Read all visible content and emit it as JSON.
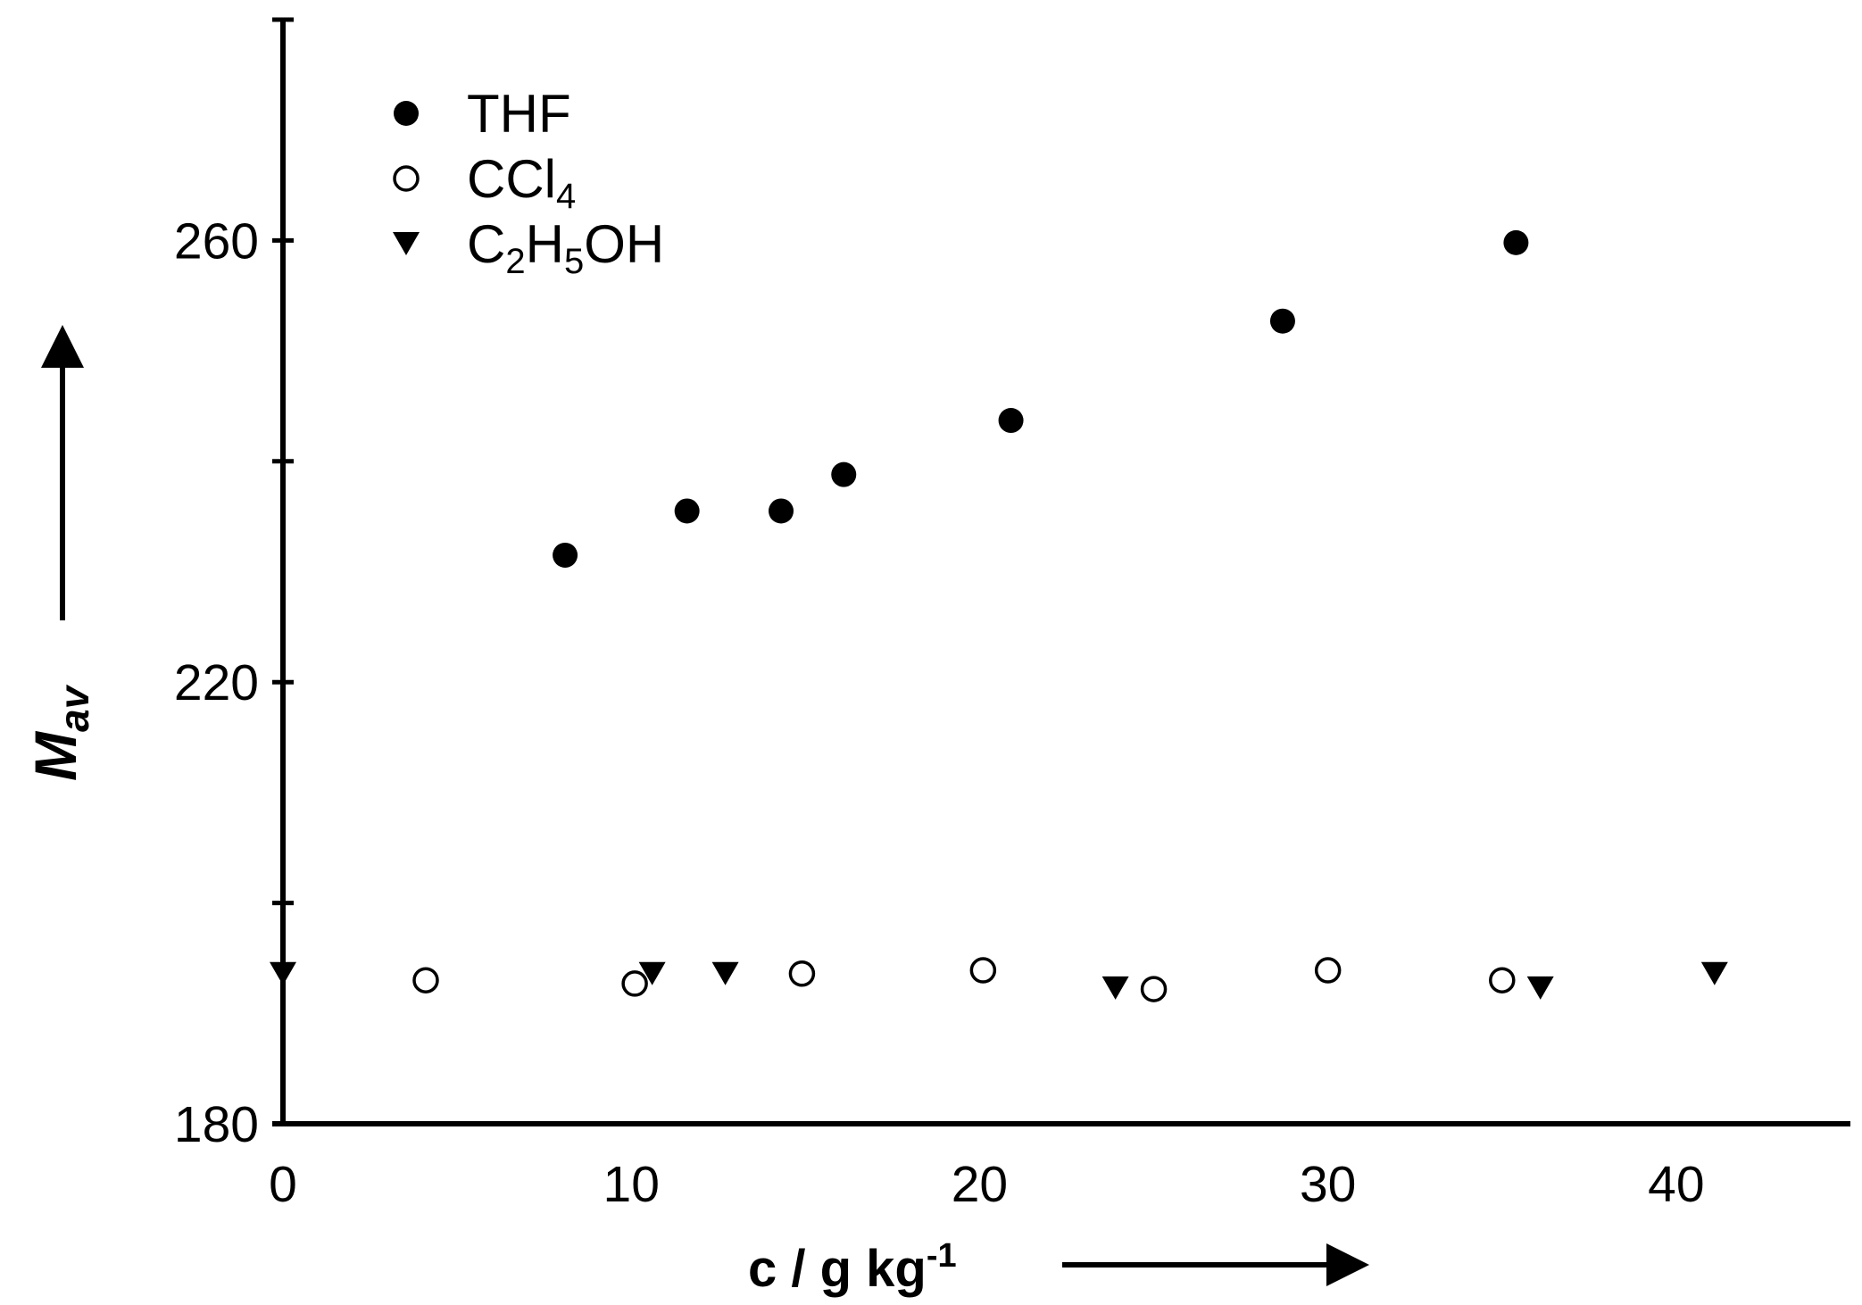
{
  "chart_data": {
    "type": "scatter",
    "xlabel": "c / g kg-1",
    "xlabel_parts": {
      "main": "c / g kg",
      "sup": "-1"
    },
    "ylabel": "Mav",
    "ylabel_parts": {
      "main": "M",
      "sub": "av"
    },
    "xlim": [
      0,
      45
    ],
    "ylim": [
      180,
      280
    ],
    "x_ticks": [
      0,
      10,
      20,
      30,
      40
    ],
    "y_ticks": [
      180,
      200,
      220,
      240,
      260,
      280
    ],
    "y_tick_labels": [
      "180",
      "",
      "220",
      "",
      "260",
      ""
    ],
    "grid": false,
    "legend_position": "top-left",
    "series": [
      {
        "name": "THF",
        "legend_parts": [
          {
            "t": "THF"
          }
        ],
        "marker": "filled-circle",
        "x": [
          8.1,
          11.6,
          14.3,
          16.1,
          20.9,
          28.7,
          35.4
        ],
        "y": [
          231.5,
          235.5,
          235.5,
          238.8,
          243.7,
          252.7,
          259.8
        ]
      },
      {
        "name": "CCl4",
        "legend_parts": [
          {
            "t": "CCl"
          },
          {
            "t": "4",
            "sub": true
          }
        ],
        "marker": "open-circle",
        "x": [
          4.1,
          10.1,
          14.9,
          20.1,
          25.0,
          30.0,
          35.0
        ],
        "y": [
          193.0,
          192.7,
          193.6,
          193.9,
          192.2,
          193.9,
          193.0
        ]
      },
      {
        "name": "C2H5OH",
        "legend_parts": [
          {
            "t": "C"
          },
          {
            "t": "2",
            "sub": true
          },
          {
            "t": "H"
          },
          {
            "t": "5",
            "sub": true
          },
          {
            "t": "OH"
          }
        ],
        "marker": "filled-triangle-down",
        "x": [
          0.0,
          10.6,
          12.7,
          23.9,
          36.1,
          41.1
        ],
        "y": [
          193.6,
          193.6,
          193.6,
          192.3,
          192.3,
          193.6
        ]
      }
    ]
  }
}
